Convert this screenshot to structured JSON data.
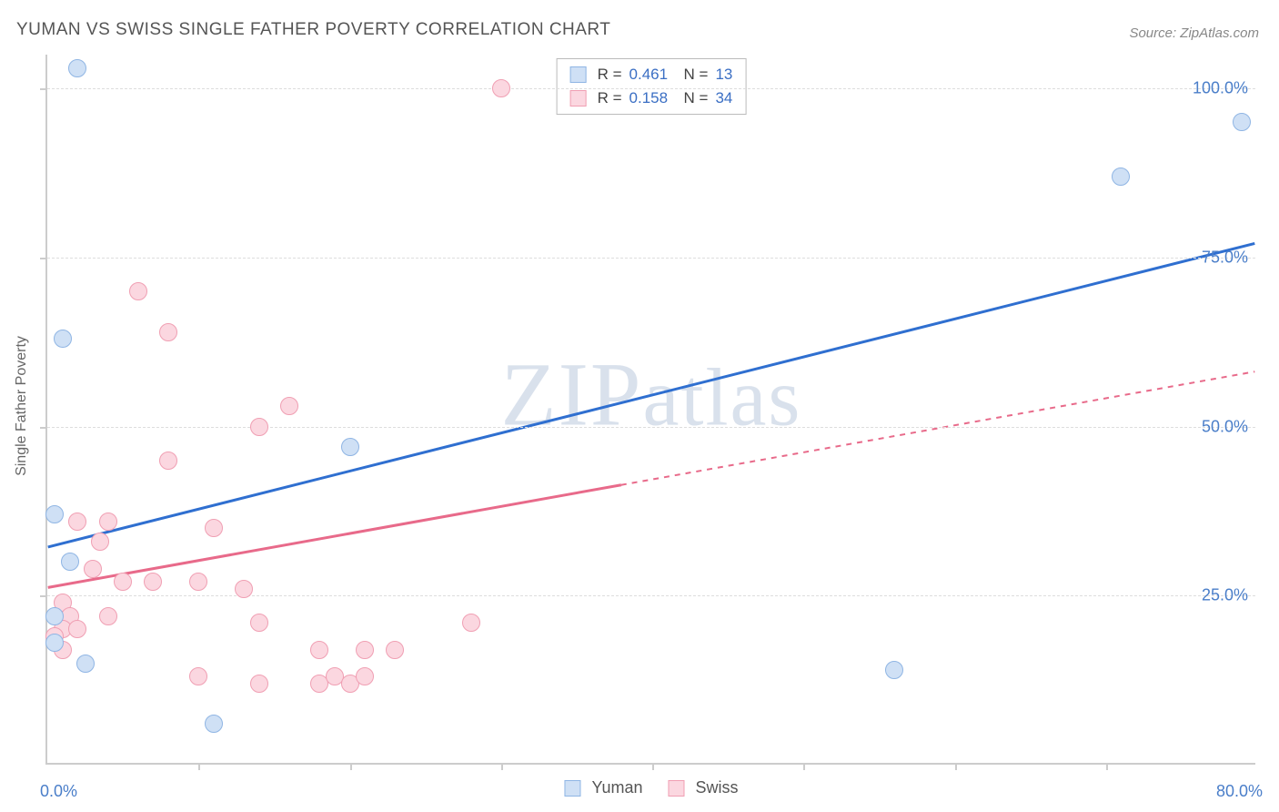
{
  "title": "YUMAN VS SWISS SINGLE FATHER POVERTY CORRELATION CHART",
  "source": "Source: ZipAtlas.com",
  "y_axis_label": "Single Father Poverty",
  "watermark": "ZIPatlas",
  "chart": {
    "type": "scatter",
    "xlim": [
      0,
      80
    ],
    "ylim": [
      0,
      105
    ],
    "y_ticks": [
      {
        "value": 25,
        "label": "25.0%"
      },
      {
        "value": 50,
        "label": "50.0%"
      },
      {
        "value": 75,
        "label": "75.0%"
      },
      {
        "value": 100,
        "label": "100.0%"
      }
    ],
    "x_ticks_minor": [
      10,
      20,
      30,
      40,
      50,
      60,
      70
    ],
    "x_label_left": {
      "value": 0,
      "label": "0.0%"
    },
    "x_label_right": {
      "value": 80,
      "label": "80.0%"
    },
    "background_color": "#ffffff",
    "grid_color": "#dddddd",
    "series": [
      {
        "name": "Yuman",
        "color_fill": "#cfe0f5",
        "color_stroke": "#8fb5e4",
        "line_color": "#2f6fd0",
        "marker_radius": 10,
        "R": "0.461",
        "N": "13",
        "points": [
          {
            "x": 2,
            "y": 103
          },
          {
            "x": 1,
            "y": 63
          },
          {
            "x": 0.5,
            "y": 37
          },
          {
            "x": 1.5,
            "y": 30
          },
          {
            "x": 0.5,
            "y": 22
          },
          {
            "x": 0.5,
            "y": 18
          },
          {
            "x": 2.5,
            "y": 15
          },
          {
            "x": 11,
            "y": 6
          },
          {
            "x": 20,
            "y": 47
          },
          {
            "x": 56,
            "y": 14
          },
          {
            "x": 71,
            "y": 87
          },
          {
            "x": 79,
            "y": 95
          }
        ],
        "trend": {
          "x1": 0,
          "y1": 32,
          "x2": 80,
          "y2": 77,
          "solid_until_x": 80
        }
      },
      {
        "name": "Swiss",
        "color_fill": "#fbd7e0",
        "color_stroke": "#f09fb3",
        "line_color": "#e86a8a",
        "marker_radius": 10,
        "R": "0.158",
        "N": "34",
        "points": [
          {
            "x": 30,
            "y": 100
          },
          {
            "x": 6,
            "y": 70
          },
          {
            "x": 8,
            "y": 64
          },
          {
            "x": 16,
            "y": 53
          },
          {
            "x": 14,
            "y": 50
          },
          {
            "x": 8,
            "y": 45
          },
          {
            "x": 2,
            "y": 36
          },
          {
            "x": 4,
            "y": 36
          },
          {
            "x": 3.5,
            "y": 33
          },
          {
            "x": 11,
            "y": 35
          },
          {
            "x": 3,
            "y": 29
          },
          {
            "x": 5,
            "y": 27
          },
          {
            "x": 7,
            "y": 27
          },
          {
            "x": 10,
            "y": 27
          },
          {
            "x": 13,
            "y": 26
          },
          {
            "x": 1,
            "y": 24
          },
          {
            "x": 1.5,
            "y": 22
          },
          {
            "x": 4,
            "y": 22
          },
          {
            "x": 1,
            "y": 20
          },
          {
            "x": 2,
            "y": 20
          },
          {
            "x": 14,
            "y": 21
          },
          {
            "x": 28,
            "y": 21
          },
          {
            "x": 1,
            "y": 17
          },
          {
            "x": 0.5,
            "y": 19
          },
          {
            "x": 18,
            "y": 17
          },
          {
            "x": 21,
            "y": 17
          },
          {
            "x": 23,
            "y": 17
          },
          {
            "x": 10,
            "y": 13
          },
          {
            "x": 14,
            "y": 12
          },
          {
            "x": 18,
            "y": 12
          },
          {
            "x": 19,
            "y": 13
          },
          {
            "x": 20,
            "y": 12
          },
          {
            "x": 21,
            "y": 13
          }
        ],
        "trend": {
          "x1": 0,
          "y1": 26,
          "x2": 80,
          "y2": 58,
          "solid_until_x": 38
        }
      }
    ]
  },
  "legend_bottom": [
    {
      "label": "Yuman",
      "fill": "#cfe0f5",
      "stroke": "#8fb5e4"
    },
    {
      "label": "Swiss",
      "fill": "#fbd7e0",
      "stroke": "#f09fb3"
    }
  ]
}
